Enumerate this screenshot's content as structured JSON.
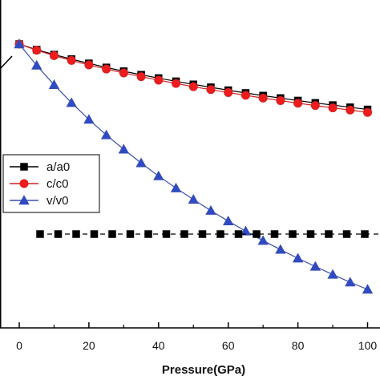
{
  "chart_data": {
    "type": "line",
    "xlabel": "Pressure(GPa)",
    "ylabel": "",
    "title": "",
    "x_ticks": [
      0,
      20,
      40,
      60,
      80,
      100
    ],
    "xlim": [
      -5,
      100
    ],
    "ylim": [
      0.775,
      1.008
    ],
    "grid": false,
    "legend_position": "left",
    "x": [
      0,
      5,
      10,
      15,
      20,
      25,
      30,
      35,
      40,
      45,
      50,
      55,
      60,
      65,
      70,
      75,
      80,
      85,
      90,
      95,
      100
    ],
    "series": [
      {
        "name": "a/a0",
        "marker": "square",
        "color": "#000000",
        "fill": "#000000",
        "values": [
          1.0,
          0.9962,
          0.9928,
          0.9897,
          0.9868,
          0.984,
          0.9814,
          0.979,
          0.9767,
          0.9745,
          0.9724,
          0.9704,
          0.9684,
          0.9665,
          0.9647,
          0.963,
          0.9613,
          0.9597,
          0.9582,
          0.9567,
          0.9552
        ]
      },
      {
        "name": "c/c0",
        "marker": "circle",
        "color": "#d62020",
        "fill": "#ee1c1c",
        "values": [
          1.0,
          0.9958,
          0.9921,
          0.9888,
          0.9857,
          0.9829,
          0.9802,
          0.9777,
          0.9753,
          0.973,
          0.9708,
          0.9688,
          0.9668,
          0.9649,
          0.963,
          0.9613,
          0.9595,
          0.9579,
          0.9563,
          0.9548,
          0.9532
        ]
      },
      {
        "name": "v/v0",
        "marker": "triangle",
        "color": "#3a4fb0",
        "fill": "#2f4ac4",
        "values": [
          1.0,
          0.9854,
          0.9721,
          0.9598,
          0.9483,
          0.9377,
          0.9279,
          0.9185,
          0.9096,
          0.9013,
          0.8935,
          0.8859,
          0.8787,
          0.8718,
          0.8653,
          0.8592,
          0.8532,
          0.8476,
          0.8421,
          0.8368,
          0.8319
        ]
      },
      {
        "name": "",
        "marker": "square",
        "line_style": "dashed",
        "color": "#000000",
        "fill": "#000000",
        "values": [
          0.866,
          0.866,
          0.866,
          0.866,
          0.866,
          0.866,
          0.866,
          0.866,
          0.866,
          0.866,
          0.866,
          0.866,
          0.866,
          0.866,
          0.866,
          0.866,
          0.866,
          0.866,
          0.866,
          0.866,
          0.866
        ]
      }
    ],
    "legend": [
      "a/a0",
      "c/c0",
      "v/v0"
    ]
  }
}
